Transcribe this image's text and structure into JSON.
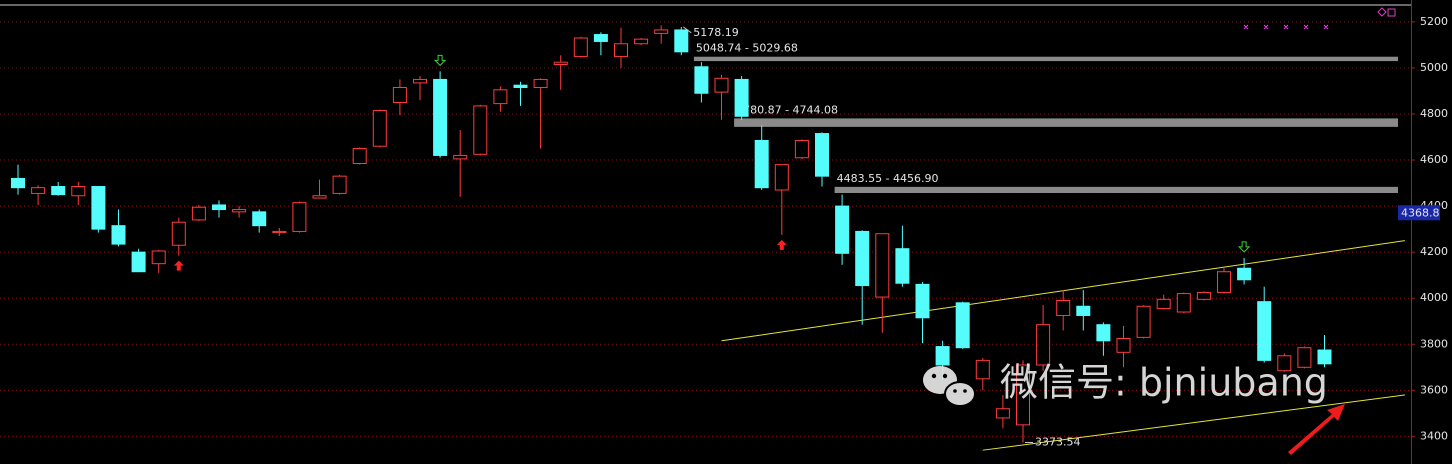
{
  "chart_data": {
    "type": "candlestick",
    "open": [
      4520,
      4455,
      4485,
      4445,
      4485,
      4315,
      4200,
      4150,
      4230,
      4340,
      4405,
      4375,
      4375,
      4285,
      4290,
      4435,
      4455,
      4585,
      4660,
      4850,
      4935,
      4950,
      4605,
      4625,
      4845,
      4925,
      4915,
      5015,
      5050,
      5145,
      5050,
      5105,
      5150,
      5165,
      5005,
      4895,
      4950,
      4685,
      4470,
      4610,
      4715,
      4400,
      4290,
      4005,
      4215,
      4060,
      3790,
      3980,
      3650,
      3480,
      3450,
      3710,
      3925,
      3965,
      3885,
      3765,
      3830,
      3955,
      3940,
      3995,
      4025,
      4130,
      3985,
      3685,
      3700,
      3775
    ],
    "high": [
      4580,
      4490,
      4505,
      4505,
      4485,
      4385,
      4215,
      4210,
      4350,
      4405,
      4425,
      4400,
      4385,
      4305,
      4420,
      4515,
      4535,
      4655,
      4820,
      4950,
      4965,
      4985,
      4730,
      4840,
      4920,
      4940,
      4955,
      5055,
      5135,
      5155,
      5175,
      5130,
      5185,
      5178.19,
      5025,
      4970,
      4965,
      4750,
      4580,
      4690,
      4720,
      4450,
      4295,
      4280,
      4315,
      4070,
      3815,
      3985,
      3740,
      3580,
      3730,
      3970,
      4035,
      4035,
      3895,
      3880,
      3970,
      4015,
      4025,
      4030,
      4130,
      4175,
      4050,
      3760,
      3790,
      3840
    ],
    "low": [
      4450,
      4405,
      4445,
      4405,
      4285,
      4225,
      4115,
      4110,
      4185,
      4335,
      4350,
      4350,
      4285,
      4270,
      4285,
      4435,
      4450,
      4580,
      4655,
      4795,
      4860,
      4610,
      4440,
      4620,
      4810,
      4835,
      4650,
      4905,
      5045,
      5055,
      5000,
      5100,
      5105,
      5055,
      4850,
      4775,
      4775,
      4470,
      4275,
      4605,
      4485,
      4145,
      3885,
      3850,
      4050,
      3805,
      3645,
      3780,
      3600,
      3435,
      3373.54,
      3685,
      3860,
      3860,
      3750,
      3700,
      3825,
      3950,
      3935,
      3990,
      4020,
      4060,
      3720,
      3680,
      3695,
      3700
    ],
    "close": [
      4480,
      4480,
      4450,
      4485,
      4300,
      4235,
      4115,
      4205,
      4330,
      4395,
      4385,
      4385,
      4315,
      4290,
      4415,
      4445,
      4530,
      4650,
      4815,
      4915,
      4950,
      4620,
      4620,
      4835,
      4905,
      4915,
      4950,
      5025,
      5130,
      5115,
      5105,
      5125,
      5165,
      5070,
      4890,
      4955,
      4790,
      4480,
      4580,
      4685,
      4530,
      4195,
      4055,
      4280,
      4065,
      3915,
      3710,
      3785,
      3730,
      3520,
      3710,
      3885,
      3990,
      3925,
      3815,
      3825,
      3965,
      3995,
      4020,
      4025,
      4115,
      4080,
      3730,
      3750,
      3785,
      3715
    ],
    "up_color": "#ff3b3b",
    "down_color": "#54fcfc",
    "ylim": [
      3280,
      5295
    ],
    "yticks": [
      3400,
      3600,
      3800,
      4000,
      4200,
      4400,
      4600,
      4800,
      5000,
      5200
    ],
    "grid": true,
    "last_price": 4368.8,
    "gaps": [
      {
        "label": "5048.74 - 5029.68",
        "values": [
          5048.74,
          5029.68
        ],
        "start": 34
      },
      {
        "label": "4780.87 - 4744.08",
        "values": [
          4780.87,
          4744.08
        ],
        "start": 36
      },
      {
        "label": "4483.55 - 4456.90",
        "values": [
          4483.55,
          4456.9
        ],
        "start": 41
      }
    ],
    "annotations": [
      {
        "text": "5178.19",
        "value": 5178.19,
        "index": 33
      },
      {
        "text": "3373.54",
        "value": 3373.54,
        "index": 50
      }
    ],
    "buy_signals": [
      8,
      38
    ],
    "sell_signals": [
      21,
      61
    ],
    "trendlines": [
      {
        "x": [
          35,
          69
        ],
        "values": [
          3815,
          4250
        ],
        "color": "#e6e639"
      },
      {
        "x": [
          48,
          69
        ],
        "values": [
          3340,
          3580
        ],
        "color": "#e6e639"
      }
    ]
  },
  "watermark": "微信号: bjniubang"
}
